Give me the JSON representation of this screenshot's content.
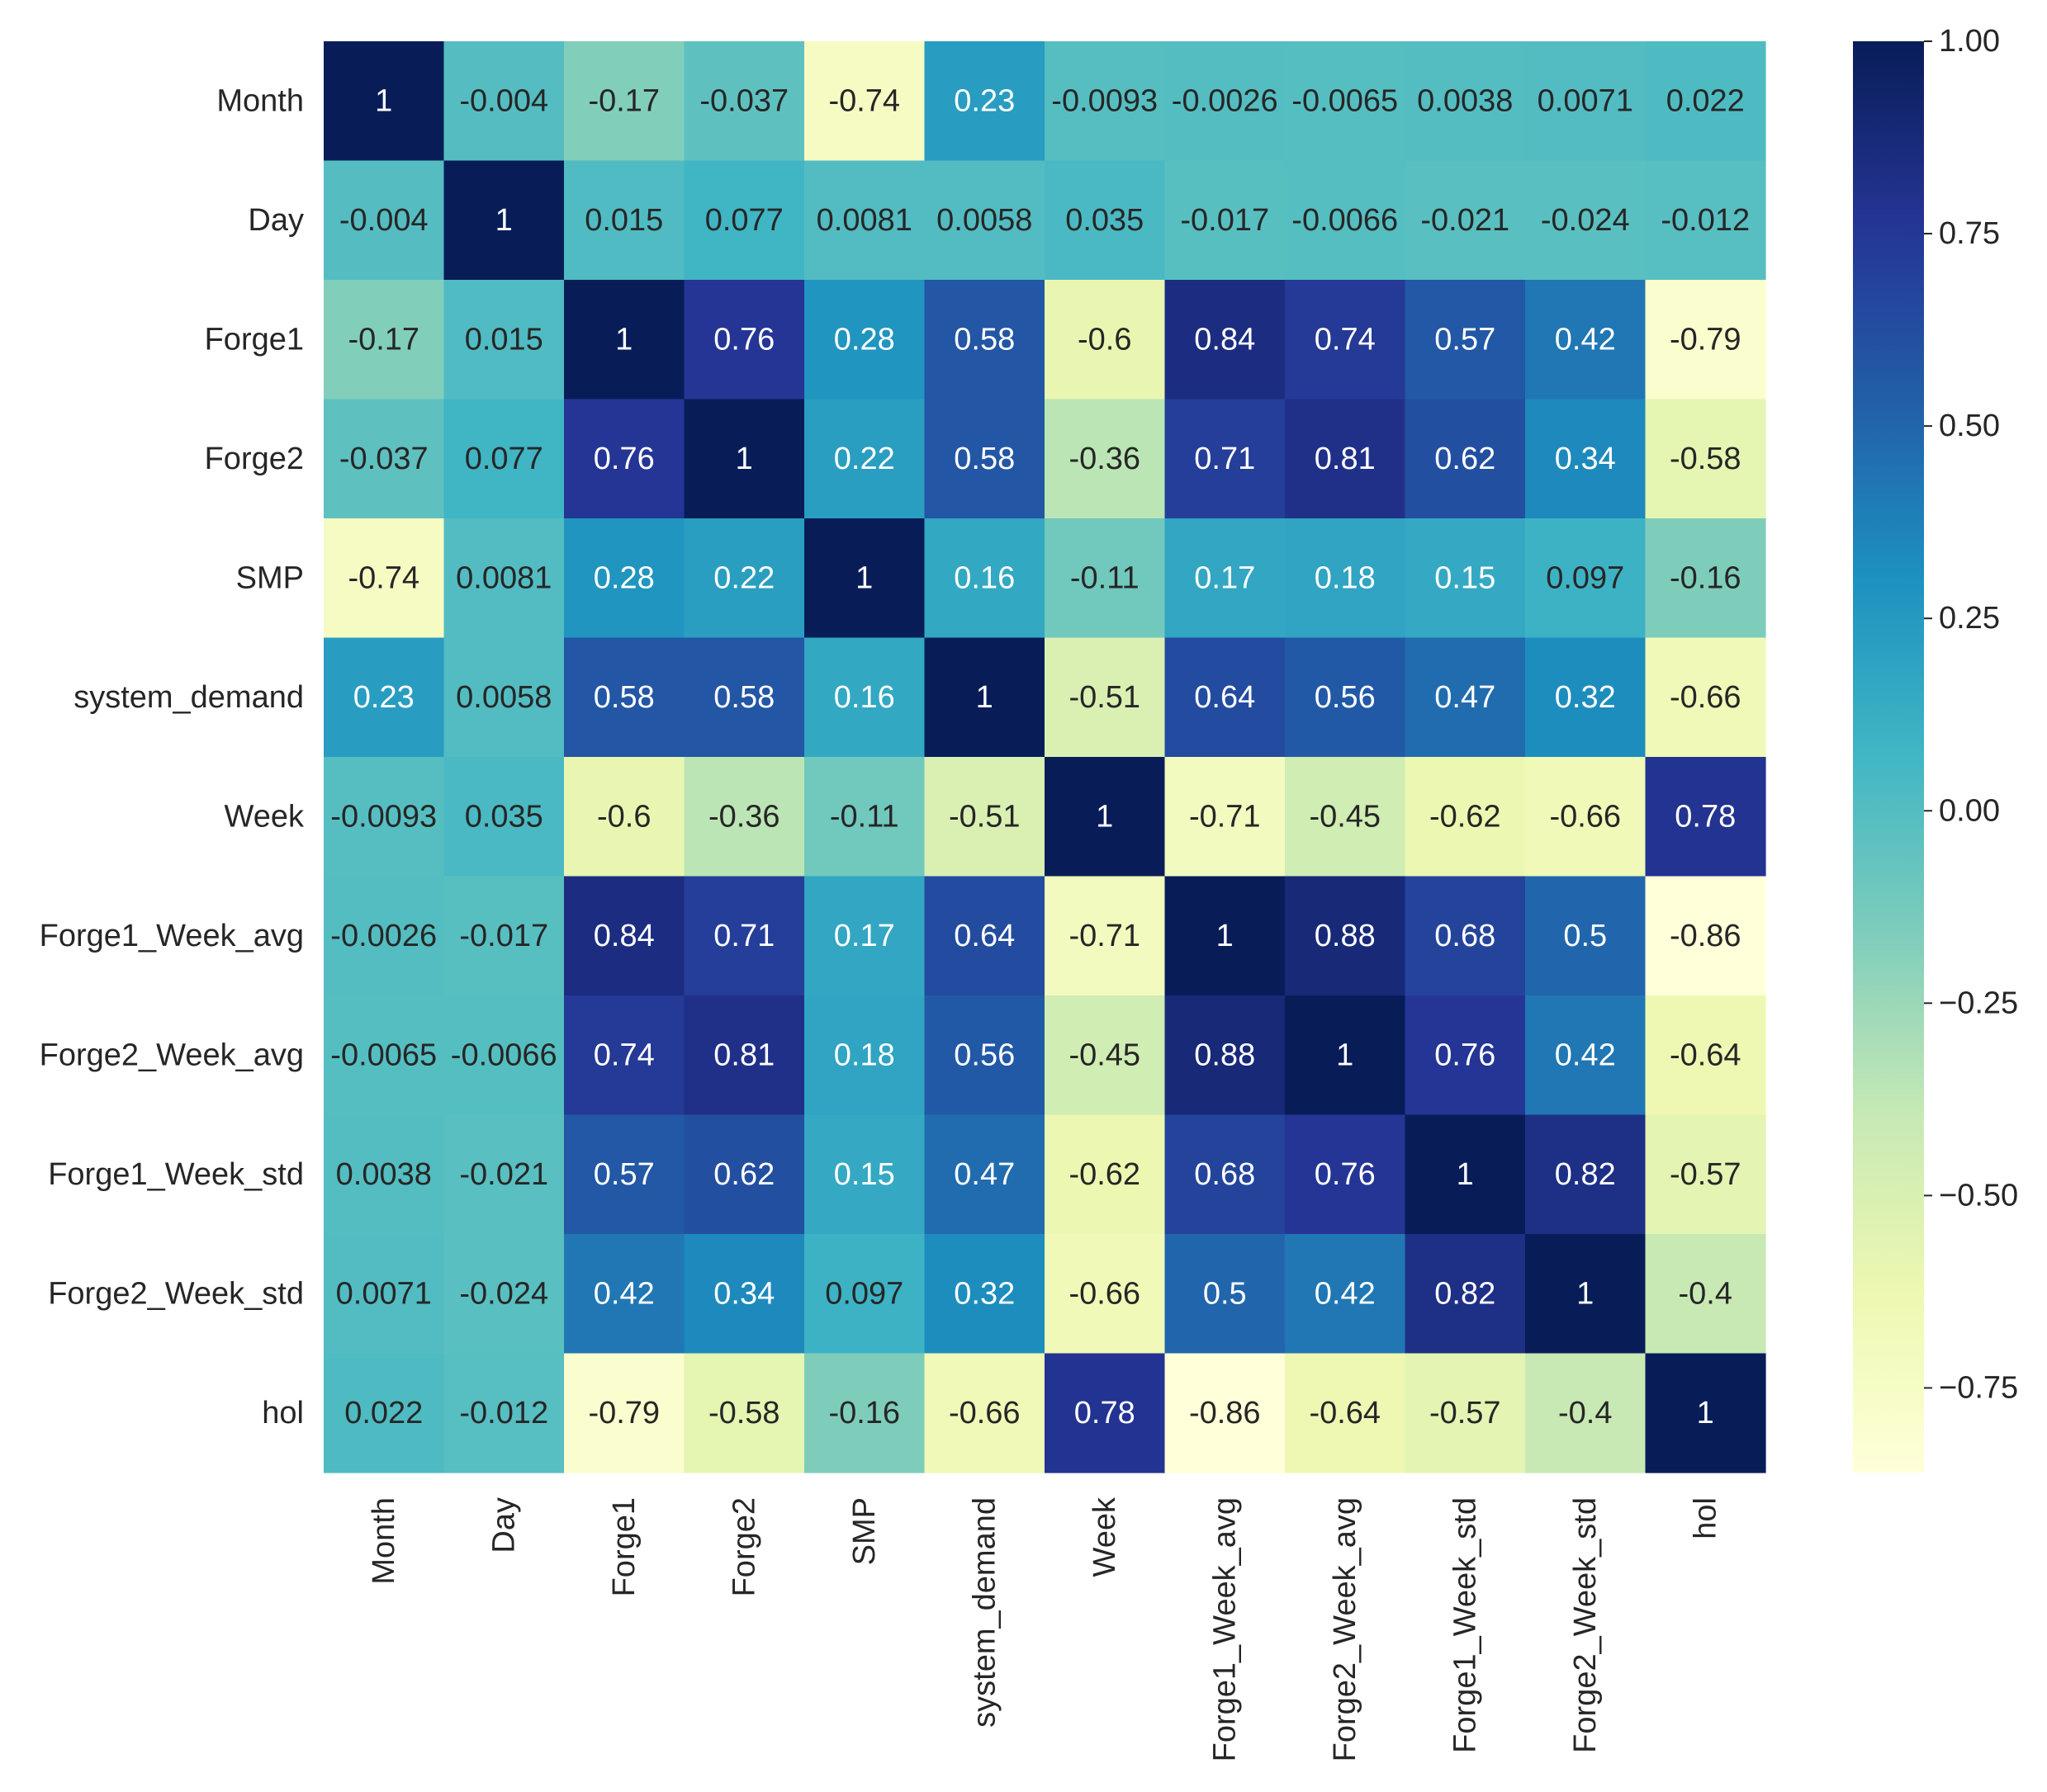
{
  "chart_data": {
    "type": "heatmap",
    "title": "",
    "xlabel": "",
    "ylabel": "",
    "rows": [
      "Month",
      "Day",
      "Forge1",
      "Forge2",
      "SMP",
      "system_demand",
      "Week",
      "Forge1_Week_avg",
      "Forge2_Week_avg",
      "Forge1_Week_std",
      "Forge2_Week_std",
      "hol"
    ],
    "columns": [
      "Month",
      "Day",
      "Forge1",
      "Forge2",
      "SMP",
      "system_demand",
      "Week",
      "Forge1_Week_avg",
      "Forge2_Week_avg",
      "Forge1_Week_std",
      "Forge2_Week_std",
      "hol"
    ],
    "values": [
      [
        1,
        -0.004,
        -0.17,
        -0.037,
        -0.74,
        0.23,
        -0.0093,
        -0.0026,
        -0.0065,
        0.0038,
        0.0071,
        0.022
      ],
      [
        -0.004,
        1,
        0.015,
        0.077,
        0.0081,
        0.0058,
        0.035,
        -0.017,
        -0.0066,
        -0.021,
        -0.024,
        -0.012
      ],
      [
        -0.17,
        0.015,
        1,
        0.76,
        0.28,
        0.58,
        -0.6,
        0.84,
        0.74,
        0.57,
        0.42,
        -0.79
      ],
      [
        -0.037,
        0.077,
        0.76,
        1,
        0.22,
        0.58,
        -0.36,
        0.71,
        0.81,
        0.62,
        0.34,
        -0.58
      ],
      [
        -0.74,
        0.0081,
        0.28,
        0.22,
        1,
        0.16,
        -0.11,
        0.17,
        0.18,
        0.15,
        0.097,
        -0.16
      ],
      [
        0.23,
        0.0058,
        0.58,
        0.58,
        0.16,
        1,
        -0.51,
        0.64,
        0.56,
        0.47,
        0.32,
        -0.66
      ],
      [
        -0.0093,
        0.035,
        -0.6,
        -0.36,
        -0.11,
        -0.51,
        1,
        -0.71,
        -0.45,
        -0.62,
        -0.66,
        0.78
      ],
      [
        -0.0026,
        -0.017,
        0.84,
        0.71,
        0.17,
        0.64,
        -0.71,
        1,
        0.88,
        0.68,
        0.5,
        -0.86
      ],
      [
        -0.0065,
        -0.0066,
        0.74,
        0.81,
        0.18,
        0.56,
        -0.45,
        0.88,
        1,
        0.76,
        0.42,
        -0.64
      ],
      [
        0.0038,
        -0.021,
        0.57,
        0.62,
        0.15,
        0.47,
        -0.62,
        0.68,
        0.76,
        1,
        0.82,
        -0.57
      ],
      [
        0.0071,
        -0.024,
        0.42,
        0.34,
        0.097,
        0.32,
        -0.66,
        0.5,
        0.42,
        0.82,
        1,
        -0.4
      ],
      [
        0.022,
        -0.012,
        -0.79,
        -0.58,
        -0.16,
        -0.66,
        0.78,
        -0.86,
        -0.64,
        -0.57,
        -0.4,
        1
      ]
    ],
    "cell_labels": [
      [
        "1",
        "-0.004",
        "-0.17",
        "-0.037",
        "-0.74",
        "0.23",
        "-0.0093",
        "-0.0026",
        "-0.0065",
        "0.0038",
        "0.0071",
        "0.022"
      ],
      [
        "-0.004",
        "1",
        "0.015",
        "0.077",
        "0.0081",
        "0.0058",
        "0.035",
        "-0.017",
        "-0.0066",
        "-0.021",
        "-0.024",
        "-0.012"
      ],
      [
        "-0.17",
        "0.015",
        "1",
        "0.76",
        "0.28",
        "0.58",
        "-0.6",
        "0.84",
        "0.74",
        "0.57",
        "0.42",
        "-0.79"
      ],
      [
        "-0.037",
        "0.077",
        "0.76",
        "1",
        "0.22",
        "0.58",
        "-0.36",
        "0.71",
        "0.81",
        "0.62",
        "0.34",
        "-0.58"
      ],
      [
        "-0.74",
        "0.0081",
        "0.28",
        "0.22",
        "1",
        "0.16",
        "-0.11",
        "0.17",
        "0.18",
        "0.15",
        "0.097",
        "-0.16"
      ],
      [
        "0.23",
        "0.0058",
        "0.58",
        "0.58",
        "0.16",
        "1",
        "-0.51",
        "0.64",
        "0.56",
        "0.47",
        "0.32",
        "-0.66"
      ],
      [
        "-0.0093",
        "0.035",
        "-0.6",
        "-0.36",
        "-0.11",
        "-0.51",
        "1",
        "-0.71",
        "-0.45",
        "-0.62",
        "-0.66",
        "0.78"
      ],
      [
        "-0.0026",
        "-0.017",
        "0.84",
        "0.71",
        "0.17",
        "0.64",
        "-0.71",
        "1",
        "0.88",
        "0.68",
        "0.5",
        "-0.86"
      ],
      [
        "-0.0065",
        "-0.0066",
        "0.74",
        "0.81",
        "0.18",
        "0.56",
        "-0.45",
        "0.88",
        "1",
        "0.76",
        "0.42",
        "-0.64"
      ],
      [
        "0.0038",
        "-0.021",
        "0.57",
        "0.62",
        "0.15",
        "0.47",
        "-0.62",
        "0.68",
        "0.76",
        "1",
        "0.82",
        "-0.57"
      ],
      [
        "0.0071",
        "-0.024",
        "0.42",
        "0.34",
        "0.097",
        "0.32",
        "-0.66",
        "0.5",
        "0.42",
        "0.82",
        "1",
        "-0.4"
      ],
      [
        "0.022",
        "-0.012",
        "-0.79",
        "-0.58",
        "-0.16",
        "-0.66",
        "0.78",
        "-0.86",
        "-0.64",
        "-0.57",
        "-0.4",
        "1"
      ]
    ],
    "colormap": "YlGnBu",
    "colormap_stops": [
      "#ffffd9",
      "#edf8b1",
      "#c7e9b4",
      "#7fcdbb",
      "#41b6c4",
      "#1d91c0",
      "#225ea8",
      "#253494",
      "#081d58"
    ],
    "vmin": -0.86,
    "vmax": 1.0,
    "colorbar": {
      "ticks": [
        1.0,
        0.75,
        0.5,
        0.25,
        0.0,
        -0.25,
        -0.5,
        -0.75
      ],
      "tick_labels": [
        "1.00",
        "0.75",
        "0.50",
        "0.25",
        "0.00",
        "−0.25",
        "−0.50",
        "−0.75"
      ],
      "position": "right"
    }
  }
}
